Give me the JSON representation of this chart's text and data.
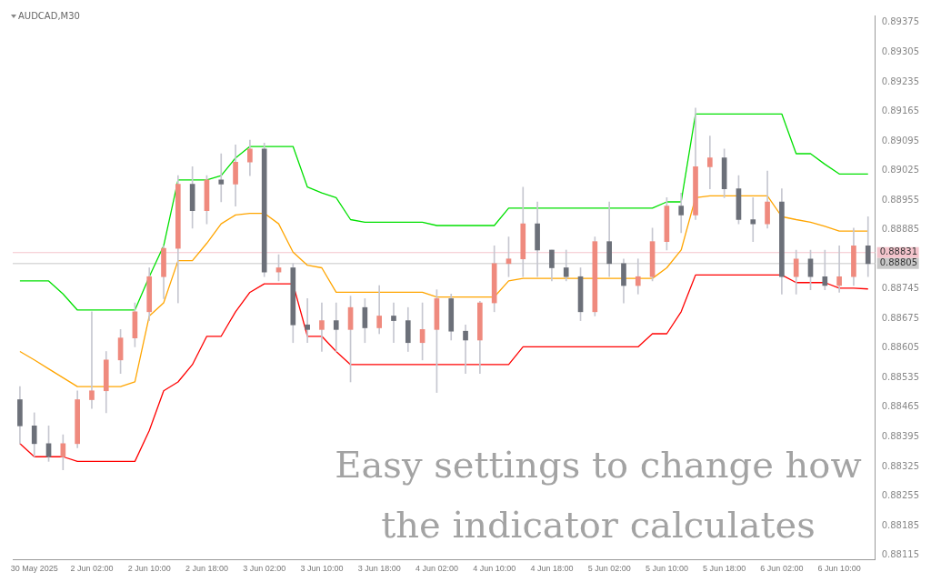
{
  "chart_data": {
    "type": "candlestick",
    "title": "AUDCAD,M30",
    "annotations": [
      "Easy settings to change how the indicator calculates"
    ],
    "categories": [
      null,
      "30 May 2025",
      null,
      null,
      null,
      "2 Jun 02:00",
      null,
      null,
      null,
      "2 Jun 10:00",
      null,
      null,
      null,
      "2 Jun 18:00",
      null,
      null,
      null,
      "3 Jun 02:00",
      null,
      null,
      null,
      "3 Jun 10:00",
      null,
      null,
      null,
      "3 Jun 18:00",
      null,
      null,
      null,
      "4 Jun 02:00",
      null,
      null,
      null,
      "4 Jun 10:00",
      null,
      null,
      null,
      "4 Jun 18:00",
      null,
      null,
      null,
      "5 Jun 02:00",
      null,
      null,
      null,
      "5 Jun 10:00",
      null,
      null,
      null,
      "5 Jun 18:00",
      null,
      null,
      null,
      "6 Jun 02:00",
      null,
      null,
      null,
      "6 Jun 10:00",
      null,
      null
    ],
    "ohlc": [
      [
        0.88483,
        0.88514,
        0.88379,
        0.88421
      ],
      [
        0.88421,
        0.88452,
        0.88348,
        0.88379
      ],
      [
        0.88379,
        0.88421,
        0.88337,
        0.88348
      ],
      [
        0.88348,
        0.884,
        0.88317,
        0.88379
      ],
      [
        0.88379,
        0.88504,
        0.88369,
        0.88483
      ],
      [
        0.88483,
        0.88691,
        0.88462,
        0.88504
      ],
      [
        0.88504,
        0.88597,
        0.88452,
        0.88577
      ],
      [
        0.88577,
        0.88649,
        0.88545,
        0.88629
      ],
      [
        0.88629,
        0.88712,
        0.88608,
        0.88691
      ],
      [
        0.88691,
        0.88795,
        0.8867,
        0.88774
      ],
      [
        0.88774,
        0.88847,
        0.88722,
        0.88841
      ],
      [
        0.88841,
        0.89013,
        0.88712,
        0.88993
      ],
      [
        0.88993,
        0.89034,
        0.88889,
        0.8893
      ],
      [
        0.8893,
        0.89013,
        0.88899,
        0.89003
      ],
      [
        0.89003,
        0.89065,
        0.88951,
        0.88993
      ],
      [
        0.88993,
        0.89086,
        0.88941,
        0.89045
      ],
      [
        0.89045,
        0.89097,
        0.89013,
        0.89076
      ],
      [
        0.89076,
        0.8909,
        0.88774,
        0.88785
      ],
      [
        0.88785,
        0.88826,
        0.88764,
        0.88795
      ],
      [
        0.88795,
        0.88805,
        0.88618,
        0.8866
      ],
      [
        0.8866,
        0.88722,
        0.88618,
        0.88649
      ],
      [
        0.88649,
        0.88712,
        0.88597,
        0.8867
      ],
      [
        0.8867,
        0.88712,
        0.88597,
        0.88649
      ],
      [
        0.88649,
        0.88728,
        0.88525,
        0.88701
      ],
      [
        0.88701,
        0.88722,
        0.88618,
        0.88653
      ],
      [
        0.88653,
        0.88753,
        0.88639,
        0.88681
      ],
      [
        0.88681,
        0.88712,
        0.88618,
        0.8867
      ],
      [
        0.8867,
        0.88701,
        0.88597,
        0.88618
      ],
      [
        0.88618,
        0.88712,
        0.88577,
        0.88649
      ],
      [
        0.88649,
        0.88743,
        0.885,
        0.88722
      ],
      [
        0.88722,
        0.88733,
        0.88624,
        0.88645
      ],
      [
        0.88645,
        0.8866,
        0.88545,
        0.88624
      ],
      [
        0.88624,
        0.88716,
        0.88545,
        0.88712
      ],
      [
        0.88712,
        0.88847,
        0.88691,
        0.88805
      ],
      [
        0.88805,
        0.88868,
        0.88774,
        0.88816
      ],
      [
        0.88816,
        0.88986,
        0.88774,
        0.88899
      ],
      [
        0.88899,
        0.88951,
        0.88774,
        0.88837
      ],
      [
        0.88837,
        0.88837,
        0.88764,
        0.88795
      ],
      [
        0.88795,
        0.88837,
        0.88764,
        0.88774
      ],
      [
        0.88774,
        0.88795,
        0.8867,
        0.88691
      ],
      [
        0.88691,
        0.88868,
        0.88681,
        0.88857
      ],
      [
        0.88857,
        0.88951,
        0.88774,
        0.88805
      ],
      [
        0.88805,
        0.88816,
        0.88712,
        0.88753
      ],
      [
        0.88753,
        0.88816,
        0.88733,
        0.88774
      ],
      [
        0.88774,
        0.88889,
        0.88764,
        0.88857
      ],
      [
        0.88857,
        0.88961,
        0.88837,
        0.88941
      ],
      [
        0.88941,
        0.88972,
        0.88878,
        0.8892
      ],
      [
        0.8892,
        0.89173,
        0.88909,
        0.89034
      ],
      [
        0.89034,
        0.89107,
        0.88982,
        0.89055
      ],
      [
        0.89055,
        0.89076,
        0.88961,
        0.88982
      ],
      [
        0.88982,
        0.89013,
        0.88899,
        0.88909
      ],
      [
        0.88909,
        0.88961,
        0.88857,
        0.88899
      ],
      [
        0.88899,
        0.89024,
        0.88889,
        0.88951
      ],
      [
        0.88951,
        0.88982,
        0.88733,
        0.88774
      ],
      [
        0.88774,
        0.88837,
        0.88733,
        0.88816
      ],
      [
        0.88816,
        0.88837,
        0.88743,
        0.88774
      ],
      [
        0.88774,
        0.88837,
        0.88743,
        0.88753
      ],
      [
        0.88753,
        0.88847,
        0.88737,
        0.88774
      ],
      [
        0.88774,
        0.88889,
        0.88753,
        0.88847
      ],
      [
        0.88847,
        0.88916,
        0.88774,
        0.88805
      ]
    ],
    "colors": [
      "#6c7079",
      "#6c7079",
      "#6c7079",
      "#ef8a7e",
      "#ef8a7e",
      "#ef8a7e",
      "#ef8a7e",
      "#ef8a7e",
      "#ef8a7e",
      "#ef8a7e",
      "#ef8a7e",
      "#ef8a7e",
      "#6c7079",
      "#ef8a7e",
      "#6c7079",
      "#ef8a7e",
      "#ef8a7e",
      "#6c7079",
      "#ef8a7e",
      "#6c7079",
      "#6c7079",
      "#ef8a7e",
      "#6c7079",
      "#ef8a7e",
      "#6c7079",
      "#ef8a7e",
      "#6c7079",
      "#6c7079",
      "#ef8a7e",
      "#ef8a7e",
      "#6c7079",
      "#6c7079",
      "#ef8a7e",
      "#ef8a7e",
      "#ef8a7e",
      "#ef8a7e",
      "#6c7079",
      "#6c7079",
      "#6c7079",
      "#6c7079",
      "#ef8a7e",
      "#6c7079",
      "#6c7079",
      "#ef8a7e",
      "#ef8a7e",
      "#ef8a7e",
      "#6c7079",
      "#ef8a7e",
      "#ef8a7e",
      "#6c7079",
      "#6c7079",
      "#6c7079",
      "#ef8a7e",
      "#6c7079",
      "#ef8a7e",
      "#6c7079",
      "#6c7079",
      "#ef8a7e",
      "#ef8a7e",
      "#6c7079"
    ],
    "series": [
      {
        "type": "line",
        "color": "#00e000",
        "values": [
          0.88764,
          0.88764,
          0.88764,
          0.88733,
          0.88695,
          0.88695,
          0.88695,
          0.88695,
          0.88695,
          0.88774,
          0.88847,
          0.89003,
          0.89003,
          0.89003,
          0.89013,
          0.89055,
          0.89082,
          0.89082,
          0.89082,
          0.89082,
          0.88986,
          0.88972,
          0.88961,
          0.88909,
          0.88903,
          0.88903,
          0.88903,
          0.88903,
          0.88903,
          0.88895,
          0.88895,
          0.88895,
          0.88895,
          0.88895,
          0.88936,
          0.88936,
          0.88936,
          0.88936,
          0.88936,
          0.88936,
          0.88936,
          0.88936,
          0.88936,
          0.88936,
          0.88936,
          0.88951,
          0.88951,
          0.89159,
          0.89159,
          0.89159,
          0.89159,
          0.89159,
          0.89159,
          0.89159,
          0.89065,
          0.89065,
          0.8904,
          0.89017,
          0.89017,
          0.89017
        ]
      },
      {
        "type": "line",
        "color": "#ffa500",
        "values": [
          0.88597,
          0.88577,
          0.88556,
          0.88535,
          0.88514,
          0.88514,
          0.88514,
          0.88514,
          0.88525,
          0.88681,
          0.88712,
          0.88812,
          0.88812,
          0.88853,
          0.88899,
          0.8892,
          0.88924,
          0.88924,
          0.88899,
          0.88832,
          0.88801,
          0.88795,
          0.88737,
          0.88737,
          0.88737,
          0.88737,
          0.88737,
          0.88737,
          0.88737,
          0.88726,
          0.88726,
          0.88726,
          0.88726,
          0.88726,
          0.88764,
          0.8877,
          0.8877,
          0.8877,
          0.8877,
          0.8877,
          0.8877,
          0.8877,
          0.8877,
          0.8877,
          0.8877,
          0.88795,
          0.88837,
          0.88961,
          0.88965,
          0.88965,
          0.88965,
          0.88965,
          0.88965,
          0.88916,
          0.88909,
          0.88903,
          0.88893,
          0.88882,
          0.88882,
          0.88882
        ]
      },
      {
        "type": "line",
        "color": "#ff0000",
        "values": [
          0.88379,
          0.88348,
          0.88348,
          0.88348,
          0.88337,
          0.88337,
          0.88337,
          0.88337,
          0.88337,
          0.8841,
          0.88504,
          0.88525,
          0.88566,
          0.88633,
          0.88633,
          0.88691,
          0.88737,
          0.88757,
          0.88757,
          0.88757,
          0.88633,
          0.88633,
          0.88597,
          0.88566,
          0.88566,
          0.88566,
          0.88566,
          0.88566,
          0.88566,
          0.88566,
          0.88566,
          0.88566,
          0.88566,
          0.88566,
          0.88566,
          0.88608,
          0.88608,
          0.88608,
          0.88608,
          0.88608,
          0.88608,
          0.88608,
          0.88608,
          0.88608,
          0.88639,
          0.88639,
          0.88691,
          0.88778,
          0.88778,
          0.88778,
          0.88778,
          0.88778,
          0.88778,
          0.88778,
          0.8876,
          0.8876,
          0.8876,
          0.88747,
          0.88747,
          0.88745
        ]
      }
    ],
    "ref_lines": [
      {
        "axis": "y",
        "value": 0.88831,
        "label": "0.88831",
        "color": "#f4c4cc"
      },
      {
        "axis": "y",
        "value": 0.88805,
        "label": "0.88805",
        "color": "#c8c8c8"
      }
    ],
    "ylim": [
      0.88105,
      0.89392
    ],
    "yticks": [
      0.88115,
      0.88185,
      0.88255,
      0.88325,
      0.88395,
      0.88465,
      0.88535,
      0.88605,
      0.88675,
      0.88745,
      0.88885,
      0.88955,
      0.89025,
      0.89095,
      0.89165,
      0.89235,
      0.89305,
      0.89375
    ],
    "grid": false,
    "legend": false
  }
}
